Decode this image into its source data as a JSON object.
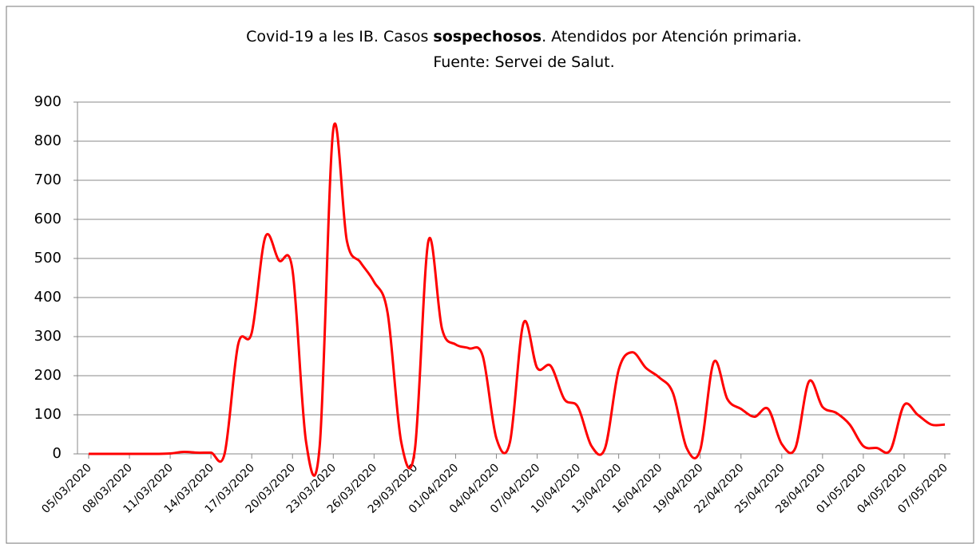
{
  "chart_data": {
    "type": "line",
    "title": [
      "Covid-19  a les IB. Casos ",
      "sospechosos",
      ". Atendidos  por Atención primaria."
    ],
    "subtitle": "Fuente: Servei de Salut.",
    "categories": [
      "05/03/2020",
      null,
      null,
      "08/03/2020",
      null,
      null,
      "11/03/2020",
      null,
      null,
      "14/03/2020",
      null,
      null,
      "17/03/2020",
      null,
      null,
      "20/03/2020",
      null,
      null,
      "23/03/2020",
      null,
      null,
      "26/03/2020",
      null,
      null,
      "29/03/2020",
      null,
      null,
      "01/04/2020",
      null,
      null,
      "04/04/2020",
      null,
      null,
      "07/04/2020",
      null,
      null,
      "10/04/2020",
      null,
      null,
      "13/04/2020",
      null,
      null,
      "16/04/2020",
      null,
      null,
      "19/04/2020",
      null,
      null,
      "22/04/2020",
      null,
      null,
      "25/04/2020",
      null,
      null,
      "28/04/2020",
      null,
      null,
      "01/05/2020",
      null,
      null,
      "04/05/2020",
      null,
      null,
      "07/05/2020"
    ],
    "series": [
      {
        "name": "Casos sospechosos",
        "color": "#ff0000",
        "values": [
          0,
          0,
          0,
          0,
          0,
          0,
          1,
          5,
          3,
          3,
          0,
          280,
          310,
          555,
          495,
          470,
          30,
          20,
          830,
          545,
          490,
          440,
          360,
          30,
          10,
          545,
          320,
          280,
          270,
          250,
          40,
          30,
          335,
          220,
          225,
          140,
          120,
          20,
          15,
          215,
          260,
          220,
          195,
          155,
          15,
          10,
          235,
          140,
          115,
          95,
          115,
          25,
          15,
          185,
          120,
          105,
          75,
          20,
          15,
          10,
          125,
          100,
          75,
          75
        ]
      }
    ],
    "ylim": [
      0,
      900
    ],
    "yticks": [
      0,
      100,
      200,
      300,
      400,
      500,
      600,
      700,
      800,
      900
    ],
    "grid": true
  }
}
